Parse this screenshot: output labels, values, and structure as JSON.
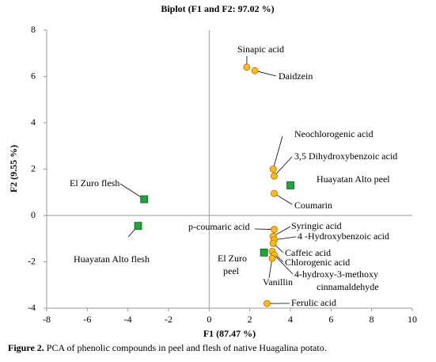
{
  "chart_data": {
    "type": "scatter",
    "title": "Biplot (F1  and F2: 97.02 %)",
    "x_label": "F1 (87.47 %)",
    "y_label": "F2 (9.55 %)",
    "caption_label": "Figure 2.",
    "caption": "PCA of phenolic compounds in peel and flesh of native Huagalina potato.",
    "xlim": [
      -8,
      10
    ],
    "ylim": [
      -4,
      8
    ],
    "xticks": [
      -8,
      -6,
      -4,
      -2,
      0,
      2,
      4,
      6,
      8,
      10
    ],
    "yticks": [
      -4,
      -2,
      0,
      2,
      4,
      6,
      8
    ],
    "series": [
      {
        "color": "#ffc000",
        "marker": "circle",
        "x": [
          1.85,
          2.25,
          3.15,
          3.2,
          3.2,
          3.2,
          3.15,
          3.2,
          3.15,
          3.1,
          3.2,
          3.1,
          2.85
        ],
        "values": [
          6.4,
          6.25,
          2.0,
          1.7,
          0.95,
          -0.6,
          -0.9,
          -1.05,
          -1.2,
          -1.55,
          -1.7,
          -1.85,
          -3.8
        ],
        "labels": [
          [
            "Sinapic acid"
          ],
          [
            "Daidzein"
          ],
          [
            "Neochlorogenic acid"
          ],
          [
            "3,5 Dihydroxybenzoic acid"
          ],
          [
            "Coumarin"
          ],
          [
            "p-coumaric acid"
          ],
          [
            "Syringic acid"
          ],
          [
            "4 -Hydroxybenzoic acid"
          ],
          [
            "Caffeic acid"
          ],
          [
            "Chlorogenic acid"
          ],
          [
            "4-hydroxy-3-methoxy",
            "cinnamaldehyde"
          ],
          [
            "Vanillin"
          ],
          [
            "Ferulic acid"
          ]
        ]
      },
      {
        "color": "#1fa53c",
        "marker": "square",
        "x": [
          -3.2,
          4.0,
          -3.5,
          2.7
        ],
        "values": [
          0.7,
          1.3,
          -0.45,
          -1.6
        ],
        "labels": [
          [
            "El Zuro flesh"
          ],
          [
            "Huayatan Alto peel"
          ],
          [
            "Huayatan Alto  flesh"
          ],
          [
            "El Zuro",
            "peel"
          ]
        ]
      }
    ]
  }
}
